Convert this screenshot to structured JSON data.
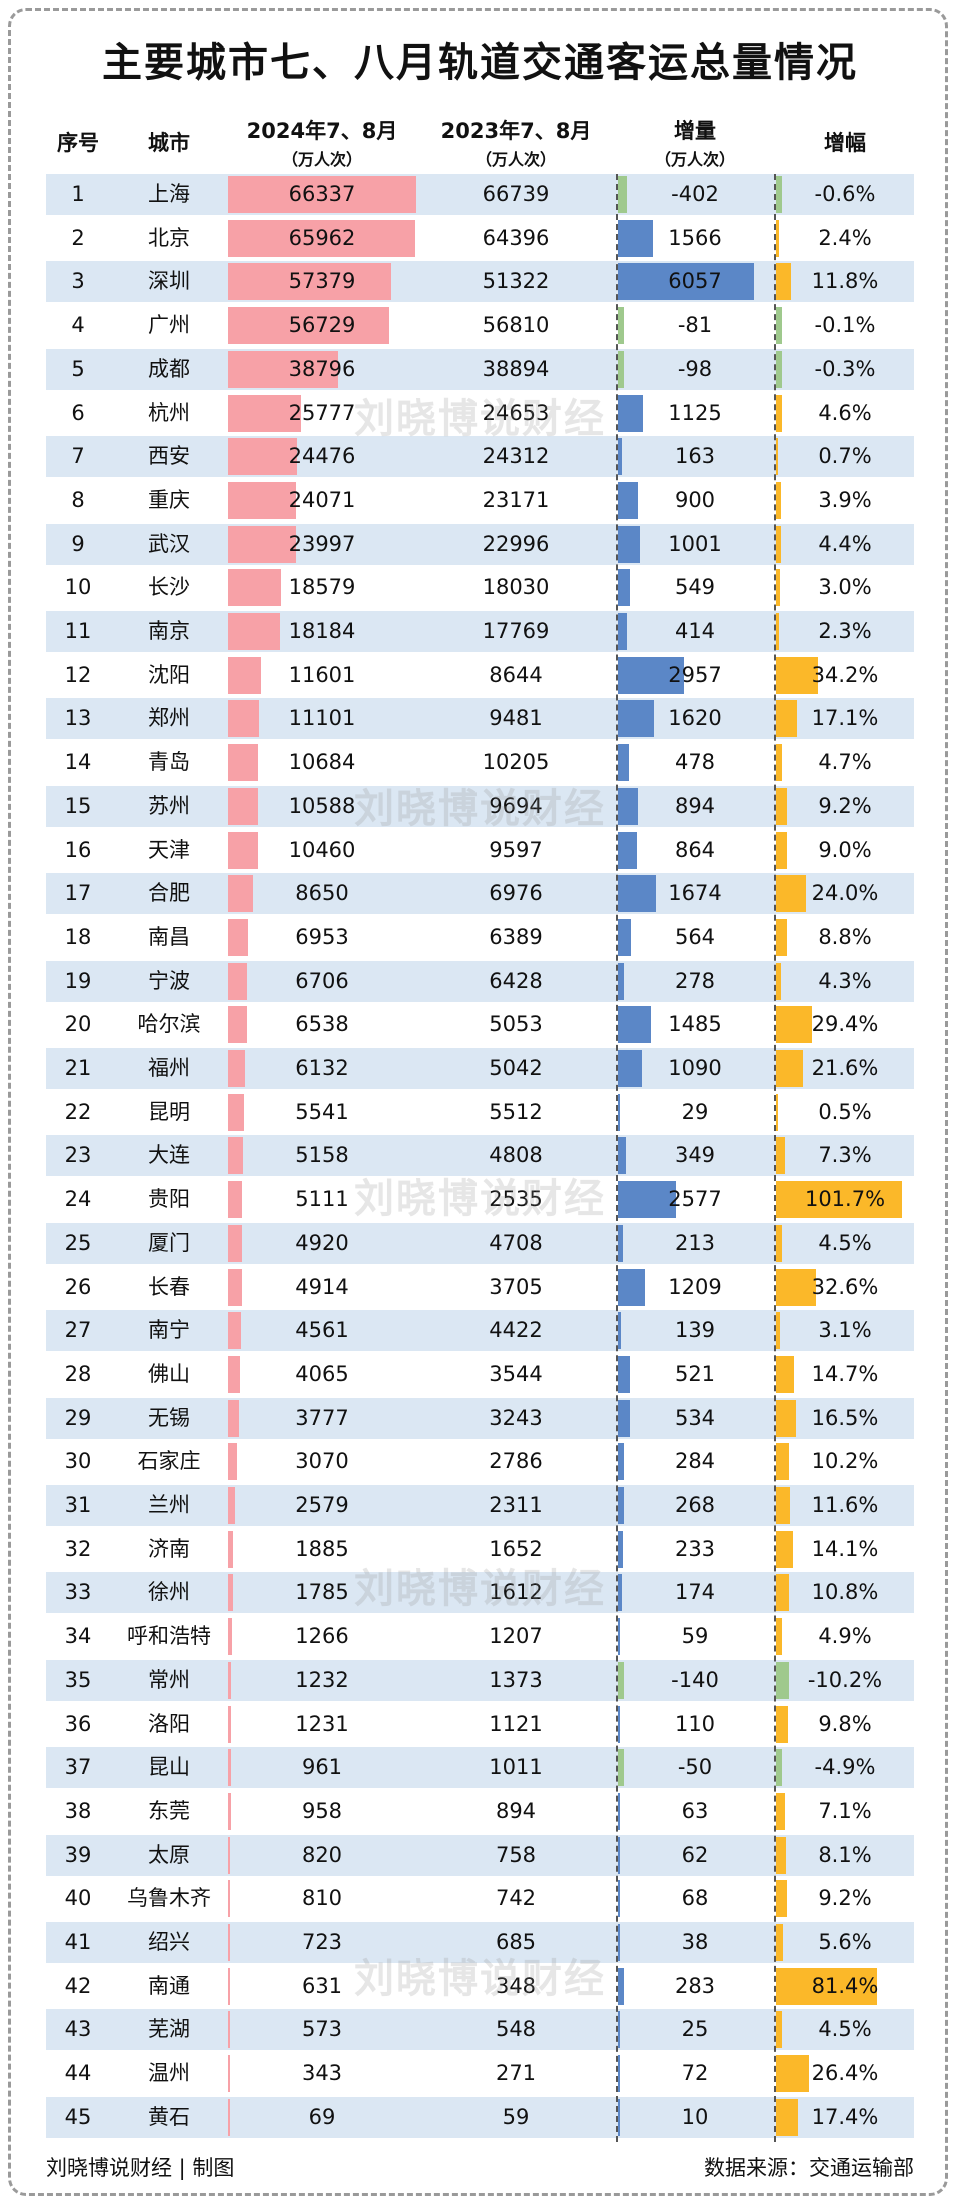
{
  "title": "主要城市七、八月轨道交通客运总量情况",
  "headers": {
    "idx": "序号",
    "city": "城市",
    "cur": "2024年7、8月",
    "cur_unit": "（万人次）",
    "prev": "2023年7、8月",
    "prev_unit": "（万人次）",
    "inc": "增量",
    "inc_unit": "（万人次）",
    "pct": "增幅"
  },
  "watermark": "刘晓博说财经",
  "footer": {
    "left": "刘晓博说财经 | 制图",
    "right": "数据来源：交通运输部"
  },
  "colors": {
    "current_bar": "#f7a1a7",
    "increase_bar": "#5b87c7",
    "growth_bar": "#fbb829",
    "negative_bar": "#9fc98d",
    "stripe": "#dbe7f3"
  },
  "chart_data": {
    "type": "table",
    "title": "主要城市七、八月轨道交通客运总量情况",
    "columns": [
      "序号",
      "城市",
      "2024年7、8月（万人次）",
      "2023年7、8月（万人次）",
      "增量（万人次）",
      "增幅"
    ],
    "rows": [
      {
        "idx": "1",
        "city": "上海",
        "cur": 66337,
        "prev": 66739,
        "inc": -402,
        "pct": "-0.6%"
      },
      {
        "idx": "2",
        "city": "北京",
        "cur": 65962,
        "prev": 64396,
        "inc": 1566,
        "pct": "2.4%"
      },
      {
        "idx": "3",
        "city": "深圳",
        "cur": 57379,
        "prev": 51322,
        "inc": 6057,
        "pct": "11.8%"
      },
      {
        "idx": "4",
        "city": "广州",
        "cur": 56729,
        "prev": 56810,
        "inc": -81,
        "pct": "-0.1%"
      },
      {
        "idx": "5",
        "city": "成都",
        "cur": 38796,
        "prev": 38894,
        "inc": -98,
        "pct": "-0.3%"
      },
      {
        "idx": "6",
        "city": "杭州",
        "cur": 25777,
        "prev": 24653,
        "inc": 1125,
        "pct": "4.6%"
      },
      {
        "idx": "7",
        "city": "西安",
        "cur": 24476,
        "prev": 24312,
        "inc": 163,
        "pct": "0.7%"
      },
      {
        "idx": "8",
        "city": "重庆",
        "cur": 24071,
        "prev": 23171,
        "inc": 900,
        "pct": "3.9%"
      },
      {
        "idx": "9",
        "city": "武汉",
        "cur": 23997,
        "prev": 22996,
        "inc": 1001,
        "pct": "4.4%"
      },
      {
        "idx": "10",
        "city": "长沙",
        "cur": 18579,
        "prev": 18030,
        "inc": 549,
        "pct": "3.0%"
      },
      {
        "idx": "11",
        "city": "南京",
        "cur": 18184,
        "prev": 17769,
        "inc": 414,
        "pct": "2.3%"
      },
      {
        "idx": "12",
        "city": "沈阳",
        "cur": 11601,
        "prev": 8644,
        "inc": 2957,
        "pct": "34.2%"
      },
      {
        "idx": "13",
        "city": "郑州",
        "cur": 11101,
        "prev": 9481,
        "inc": 1620,
        "pct": "17.1%"
      },
      {
        "idx": "14",
        "city": "青岛",
        "cur": 10684,
        "prev": 10205,
        "inc": 478,
        "pct": "4.7%"
      },
      {
        "idx": "15",
        "city": "苏州",
        "cur": 10588,
        "prev": 9694,
        "inc": 894,
        "pct": "9.2%"
      },
      {
        "idx": "16",
        "city": "天津",
        "cur": 10460,
        "prev": 9597,
        "inc": 864,
        "pct": "9.0%"
      },
      {
        "idx": "17",
        "city": "合肥",
        "cur": 8650,
        "prev": 6976,
        "inc": 1674,
        "pct": "24.0%"
      },
      {
        "idx": "18",
        "city": "南昌",
        "cur": 6953,
        "prev": 6389,
        "inc": 564,
        "pct": "8.8%"
      },
      {
        "idx": "19",
        "city": "宁波",
        "cur": 6706,
        "prev": 6428,
        "inc": 278,
        "pct": "4.3%"
      },
      {
        "idx": "20",
        "city": "哈尔滨",
        "cur": 6538,
        "prev": 5053,
        "inc": 1485,
        "pct": "29.4%"
      },
      {
        "idx": "21",
        "city": "福州",
        "cur": 6132,
        "prev": 5042,
        "inc": 1090,
        "pct": "21.6%"
      },
      {
        "idx": "22",
        "city": "昆明",
        "cur": 5541,
        "prev": 5512,
        "inc": 29,
        "pct": "0.5%"
      },
      {
        "idx": "23",
        "city": "大连",
        "cur": 5158,
        "prev": 4808,
        "inc": 349,
        "pct": "7.3%"
      },
      {
        "idx": "24",
        "city": "贵阳",
        "cur": 5111,
        "prev": 2535,
        "inc": 2577,
        "pct": "101.7%"
      },
      {
        "idx": "25",
        "city": "厦门",
        "cur": 4920,
        "prev": 4708,
        "inc": 213,
        "pct": "4.5%"
      },
      {
        "idx": "26",
        "city": "长春",
        "cur": 4914,
        "prev": 3705,
        "inc": 1209,
        "pct": "32.6%"
      },
      {
        "idx": "27",
        "city": "南宁",
        "cur": 4561,
        "prev": 4422,
        "inc": 139,
        "pct": "3.1%"
      },
      {
        "idx": "28",
        "city": "佛山",
        "cur": 4065,
        "prev": 3544,
        "inc": 521,
        "pct": "14.7%"
      },
      {
        "idx": "29",
        "city": "无锡",
        "cur": 3777,
        "prev": 3243,
        "inc": 534,
        "pct": "16.5%"
      },
      {
        "idx": "30",
        "city": "石家庄",
        "cur": 3070,
        "prev": 2786,
        "inc": 284,
        "pct": "10.2%"
      },
      {
        "idx": "31",
        "city": "兰州",
        "cur": 2579,
        "prev": 2311,
        "inc": 268,
        "pct": "11.6%"
      },
      {
        "idx": "32",
        "city": "济南",
        "cur": 1885,
        "prev": 1652,
        "inc": 233,
        "pct": "14.1%"
      },
      {
        "idx": "33",
        "city": "徐州",
        "cur": 1785,
        "prev": 1612,
        "inc": 174,
        "pct": "10.8%"
      },
      {
        "idx": "34",
        "city": "呼和浩特",
        "cur": 1266,
        "prev": 1207,
        "inc": 59,
        "pct": "4.9%"
      },
      {
        "idx": "35",
        "city": "常州",
        "cur": 1232,
        "prev": 1373,
        "inc": -140,
        "pct": "-10.2%"
      },
      {
        "idx": "36",
        "city": "洛阳",
        "cur": 1231,
        "prev": 1121,
        "inc": 110,
        "pct": "9.8%"
      },
      {
        "idx": "37",
        "city": "昆山",
        "cur": 961,
        "prev": 1011,
        "inc": -50,
        "pct": "-4.9%"
      },
      {
        "idx": "38",
        "city": "东莞",
        "cur": 958,
        "prev": 894,
        "inc": 63,
        "pct": "7.1%"
      },
      {
        "idx": "39",
        "city": "太原",
        "cur": 820,
        "prev": 758,
        "inc": 62,
        "pct": "8.1%"
      },
      {
        "idx": "40",
        "city": "乌鲁木齐",
        "cur": 810,
        "prev": 742,
        "inc": 68,
        "pct": "9.2%"
      },
      {
        "idx": "41",
        "city": "绍兴",
        "cur": 723,
        "prev": 685,
        "inc": 38,
        "pct": "5.6%"
      },
      {
        "idx": "42",
        "city": "南通",
        "cur": 631,
        "prev": 348,
        "inc": 283,
        "pct": "81.4%"
      },
      {
        "idx": "43",
        "city": "芜湖",
        "cur": 573,
        "prev": 548,
        "inc": 25,
        "pct": "4.5%"
      },
      {
        "idx": "44",
        "city": "温州",
        "cur": 343,
        "prev": 271,
        "inc": 72,
        "pct": "26.4%"
      },
      {
        "idx": "45",
        "city": "黄石",
        "cur": 69,
        "prev": 59,
        "inc": 10,
        "pct": "17.4%"
      }
    ]
  }
}
